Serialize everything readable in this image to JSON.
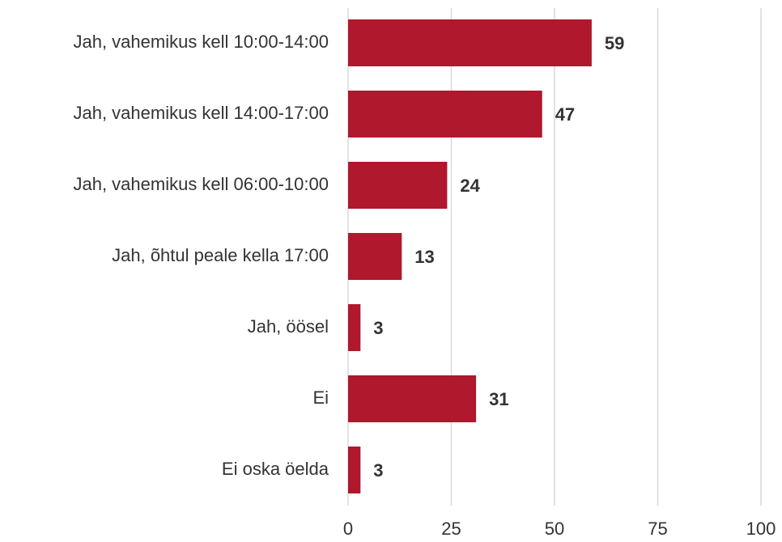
{
  "chart_data": {
    "type": "hbar",
    "categories": [
      "Jah, vahemikus kell 10:00-14:00",
      "Jah, vahemikus kell 14:00-17:00",
      "Jah, vahemikus kell 06:00-10:00",
      "Jah, õhtul peale kella 17:00",
      "Jah, öösel",
      "Ei",
      "Ei oska öelda"
    ],
    "values": [
      59,
      47,
      24,
      13,
      3,
      31,
      3
    ],
    "color": "#b0182d",
    "xlim": [
      0,
      100
    ],
    "xticks": [
      0,
      25,
      50,
      75,
      100
    ],
    "grid": true
  }
}
